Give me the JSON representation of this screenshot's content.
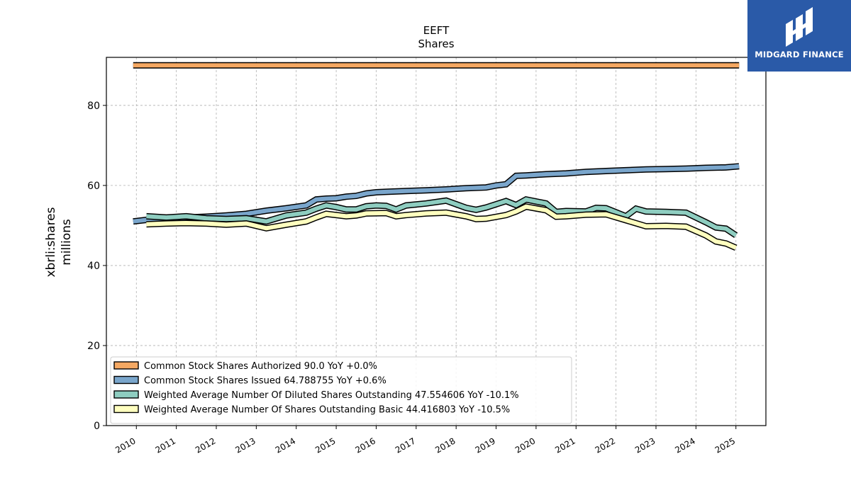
{
  "brand": {
    "name": "MIDGARD FINANCE",
    "color": "#2a5aa8"
  },
  "chart_data": {
    "type": "line",
    "title": "EEFT",
    "subtitle": "Shares",
    "ylabel_line1": "xbrli:shares",
    "ylabel_line2": "millions",
    "xlabel": "",
    "ylim": [
      0,
      92
    ],
    "xlim": [
      2009.25,
      2025.75
    ],
    "yticks": [
      0,
      20,
      40,
      60,
      80
    ],
    "xticks": [
      "2010",
      "2011",
      "2012",
      "2013",
      "2014",
      "2015",
      "2016",
      "2017",
      "2018",
      "2019",
      "2020",
      "2021",
      "2022",
      "2023",
      "2024",
      "2025"
    ],
    "grid": true,
    "legend_position": "lower-left",
    "series": [
      {
        "name": "Common Stock Shares Authorized  90.0 YoY +0.0%",
        "color": "#f5a862",
        "points": [
          [
            2009.92,
            90.0
          ],
          [
            2025.08,
            90.0
          ]
        ]
      },
      {
        "name": "Common Stock Shares Issued  64.788755 YoY +0.6%",
        "color": "#7aa6cc",
        "points": [
          [
            2009.92,
            51.0
          ],
          [
            2010.25,
            51.4
          ],
          [
            2010.75,
            51.7
          ],
          [
            2011.25,
            52.0
          ],
          [
            2011.75,
            52.2
          ],
          [
            2012.25,
            52.5
          ],
          [
            2012.75,
            52.9
          ],
          [
            2013.25,
            53.7
          ],
          [
            2013.75,
            54.3
          ],
          [
            2014.25,
            55.0
          ],
          [
            2014.5,
            56.5
          ],
          [
            2014.75,
            56.7
          ],
          [
            2015.0,
            56.8
          ],
          [
            2015.25,
            57.2
          ],
          [
            2015.5,
            57.4
          ],
          [
            2015.75,
            58.0
          ],
          [
            2016.0,
            58.3
          ],
          [
            2016.25,
            58.4
          ],
          [
            2016.75,
            58.6
          ],
          [
            2017.25,
            58.8
          ],
          [
            2017.75,
            59.0
          ],
          [
            2018.25,
            59.3
          ],
          [
            2018.75,
            59.5
          ],
          [
            2019.0,
            60.0
          ],
          [
            2019.25,
            60.3
          ],
          [
            2019.5,
            62.4
          ],
          [
            2019.75,
            62.5
          ],
          [
            2020.25,
            62.8
          ],
          [
            2020.75,
            63.0
          ],
          [
            2021.25,
            63.4
          ],
          [
            2021.75,
            63.6
          ],
          [
            2022.25,
            63.8
          ],
          [
            2022.75,
            64.0
          ],
          [
            2023.25,
            64.1
          ],
          [
            2023.75,
            64.2
          ],
          [
            2024.25,
            64.4
          ],
          [
            2024.75,
            64.5
          ],
          [
            2025.08,
            64.79
          ]
        ]
      },
      {
        "name": "Weighted Average Number Of Diluted Shares Outstanding  47.554606 YoY -10.1%",
        "color": "#8ecdc0",
        "points": [
          [
            2010.25,
            52.3
          ],
          [
            2010.75,
            52.0
          ],
          [
            2011.25,
            52.3
          ],
          [
            2011.75,
            51.8
          ],
          [
            2012.25,
            51.6
          ],
          [
            2012.75,
            51.8
          ],
          [
            2013.25,
            51.0
          ],
          [
            2013.75,
            52.5
          ],
          [
            2014.25,
            53.2
          ],
          [
            2014.5,
            54.2
          ],
          [
            2014.75,
            55.0
          ],
          [
            2015.0,
            54.6
          ],
          [
            2015.25,
            54.0
          ],
          [
            2015.5,
            54.0
          ],
          [
            2015.75,
            54.8
          ],
          [
            2016.0,
            55.0
          ],
          [
            2016.25,
            54.9
          ],
          [
            2016.5,
            54.0
          ],
          [
            2016.75,
            55.0
          ],
          [
            2017.25,
            55.5
          ],
          [
            2017.75,
            56.2
          ],
          [
            2018.25,
            54.4
          ],
          [
            2018.5,
            53.9
          ],
          [
            2018.75,
            54.5
          ],
          [
            2019.25,
            56.1
          ],
          [
            2019.5,
            55.1
          ],
          [
            2019.75,
            56.5
          ],
          [
            2020.25,
            55.5
          ],
          [
            2020.5,
            53.4
          ],
          [
            2020.75,
            53.6
          ],
          [
            2021.25,
            53.5
          ],
          [
            2021.5,
            54.4
          ],
          [
            2021.75,
            54.3
          ],
          [
            2022.25,
            52.3
          ],
          [
            2022.5,
            54.2
          ],
          [
            2022.75,
            53.5
          ],
          [
            2023.25,
            53.4
          ],
          [
            2023.75,
            53.2
          ],
          [
            2024.25,
            50.8
          ],
          [
            2024.5,
            49.5
          ],
          [
            2024.75,
            49.2
          ],
          [
            2025.0,
            47.55
          ]
        ]
      },
      {
        "name": "Weighted Average Number Of Shares Outstanding Basic  44.416803 YoY -10.5%",
        "color": "#ffffbf",
        "points": [
          [
            2010.25,
            50.3
          ],
          [
            2010.75,
            50.5
          ],
          [
            2011.25,
            50.6
          ],
          [
            2011.75,
            50.5
          ],
          [
            2012.25,
            50.2
          ],
          [
            2012.75,
            50.5
          ],
          [
            2013.25,
            49.3
          ],
          [
            2013.75,
            50.2
          ],
          [
            2014.25,
            51.0
          ],
          [
            2014.5,
            52.0
          ],
          [
            2014.75,
            52.9
          ],
          [
            2015.0,
            52.6
          ],
          [
            2015.25,
            52.3
          ],
          [
            2015.5,
            52.5
          ],
          [
            2015.75,
            53.0
          ],
          [
            2016.25,
            53.1
          ],
          [
            2016.5,
            52.3
          ],
          [
            2016.75,
            52.6
          ],
          [
            2017.25,
            53.0
          ],
          [
            2017.75,
            53.2
          ],
          [
            2018.25,
            52.3
          ],
          [
            2018.5,
            51.6
          ],
          [
            2018.75,
            51.7
          ],
          [
            2019.25,
            52.6
          ],
          [
            2019.5,
            53.5
          ],
          [
            2019.75,
            54.7
          ],
          [
            2020.25,
            53.8
          ],
          [
            2020.5,
            52.2
          ],
          [
            2020.75,
            52.3
          ],
          [
            2021.25,
            52.7
          ],
          [
            2021.75,
            52.8
          ],
          [
            2022.25,
            51.3
          ],
          [
            2022.75,
            49.8
          ],
          [
            2023.25,
            49.9
          ],
          [
            2023.75,
            49.7
          ],
          [
            2024.25,
            47.5
          ],
          [
            2024.5,
            46.0
          ],
          [
            2024.75,
            45.5
          ],
          [
            2025.0,
            44.42
          ]
        ]
      }
    ]
  }
}
